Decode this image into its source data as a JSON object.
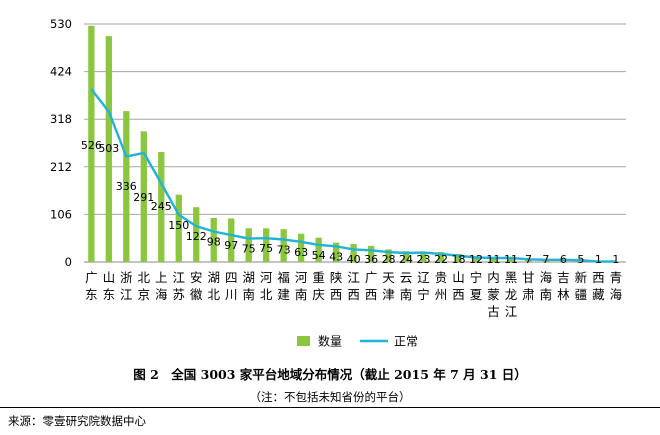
{
  "chart_data": {
    "type": "bar",
    "categories": [
      [
        "广",
        "东"
      ],
      [
        "山",
        "东"
      ],
      [
        "浙",
        "江"
      ],
      [
        "北",
        "京"
      ],
      [
        "上",
        "海"
      ],
      [
        "江",
        "苏"
      ],
      [
        "安",
        "徽"
      ],
      [
        "湖",
        "北"
      ],
      [
        "四",
        "川"
      ],
      [
        "湖",
        "南"
      ],
      [
        "河",
        "北"
      ],
      [
        "福",
        "建"
      ],
      [
        "河",
        "南"
      ],
      [
        "重",
        "庆"
      ],
      [
        "陕",
        "西"
      ],
      [
        "江",
        "西"
      ],
      [
        "广",
        "西"
      ],
      [
        "天",
        "津"
      ],
      [
        "云",
        "南"
      ],
      [
        "辽",
        "宁"
      ],
      [
        "贵",
        "州"
      ],
      [
        "山",
        "西"
      ],
      [
        "宁",
        "夏"
      ],
      [
        "内",
        "蒙",
        "古"
      ],
      [
        "黑",
        "龙",
        "江"
      ],
      [
        "甘",
        "肃"
      ],
      [
        "海",
        "南"
      ],
      [
        "吉",
        "林"
      ],
      [
        "新",
        "疆"
      ],
      [
        "西",
        "藏"
      ],
      [
        "青",
        "海"
      ]
    ],
    "series": [
      {
        "name": "数量",
        "type": "bar",
        "color": "#8cc63f",
        "values": [
          526,
          503,
          336,
          291,
          245,
          150,
          122,
          98,
          97,
          75,
          75,
          73,
          63,
          54,
          43,
          40,
          36,
          28,
          24,
          23,
          22,
          18,
          12,
          11,
          11,
          7,
          7,
          6,
          5,
          1,
          1
        ],
        "labels": [
          "526",
          "503",
          "336",
          "291",
          "245",
          "150",
          "122",
          "98",
          "97",
          "75",
          "75",
          "73",
          "63",
          "54",
          "43",
          "40",
          "36",
          "28",
          "24",
          "23",
          "22",
          "18",
          "12",
          "11",
          "11",
          "7",
          "7",
          "6",
          "5",
          "1",
          "1"
        ]
      },
      {
        "name": "正常",
        "type": "line",
        "color": "#1fb3d6",
        "values": [
          385,
          335,
          235,
          243,
          175,
          105,
          80,
          68,
          60,
          52,
          53,
          50,
          45,
          38,
          35,
          28,
          26,
          22,
          20,
          21,
          18,
          14,
          10,
          9,
          9,
          6,
          5,
          5,
          4,
          1,
          1
        ]
      }
    ],
    "yticks": [
      "0",
      "106",
      "212",
      "318",
      "424",
      "530"
    ],
    "ylim": [
      0,
      530
    ],
    "grid": true,
    "legend": "bottom"
  },
  "caption": {
    "title": "图 2　全国 3003 家平台地域分布情况（截止 2015 年 7 月 31 日）",
    "note": "（注：不包括未知省份的平台）"
  },
  "source": "来源：零壹研究院数据中心"
}
